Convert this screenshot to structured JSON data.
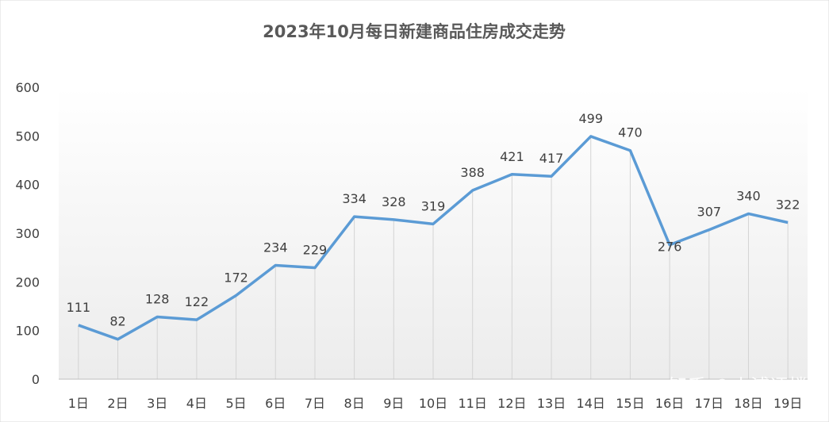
{
  "chart_data": {
    "type": "line",
    "title": "2023年10月每日新建商品住房成交走势",
    "categories": [
      "1日",
      "2日",
      "3日",
      "4日",
      "5日",
      "6日",
      "7日",
      "8日",
      "9日",
      "10日",
      "11日",
      "12日",
      "13日",
      "14日",
      "15日",
      "16日",
      "17日",
      "18日",
      "19日"
    ],
    "series": [
      {
        "values": [
          111,
          82,
          128,
          122,
          172,
          234,
          229,
          334,
          328,
          319,
          388,
          421,
          417,
          499,
          470,
          276,
          307,
          340,
          322
        ]
      }
    ],
    "ylim": [
      0,
      600
    ],
    "yticks": [
      0,
      100,
      200,
      300,
      400,
      500,
      600
    ],
    "grid": false,
    "drop_lines": true,
    "line_color": "#5B9BD5",
    "watermark": "知乎 @小浦评楼"
  }
}
